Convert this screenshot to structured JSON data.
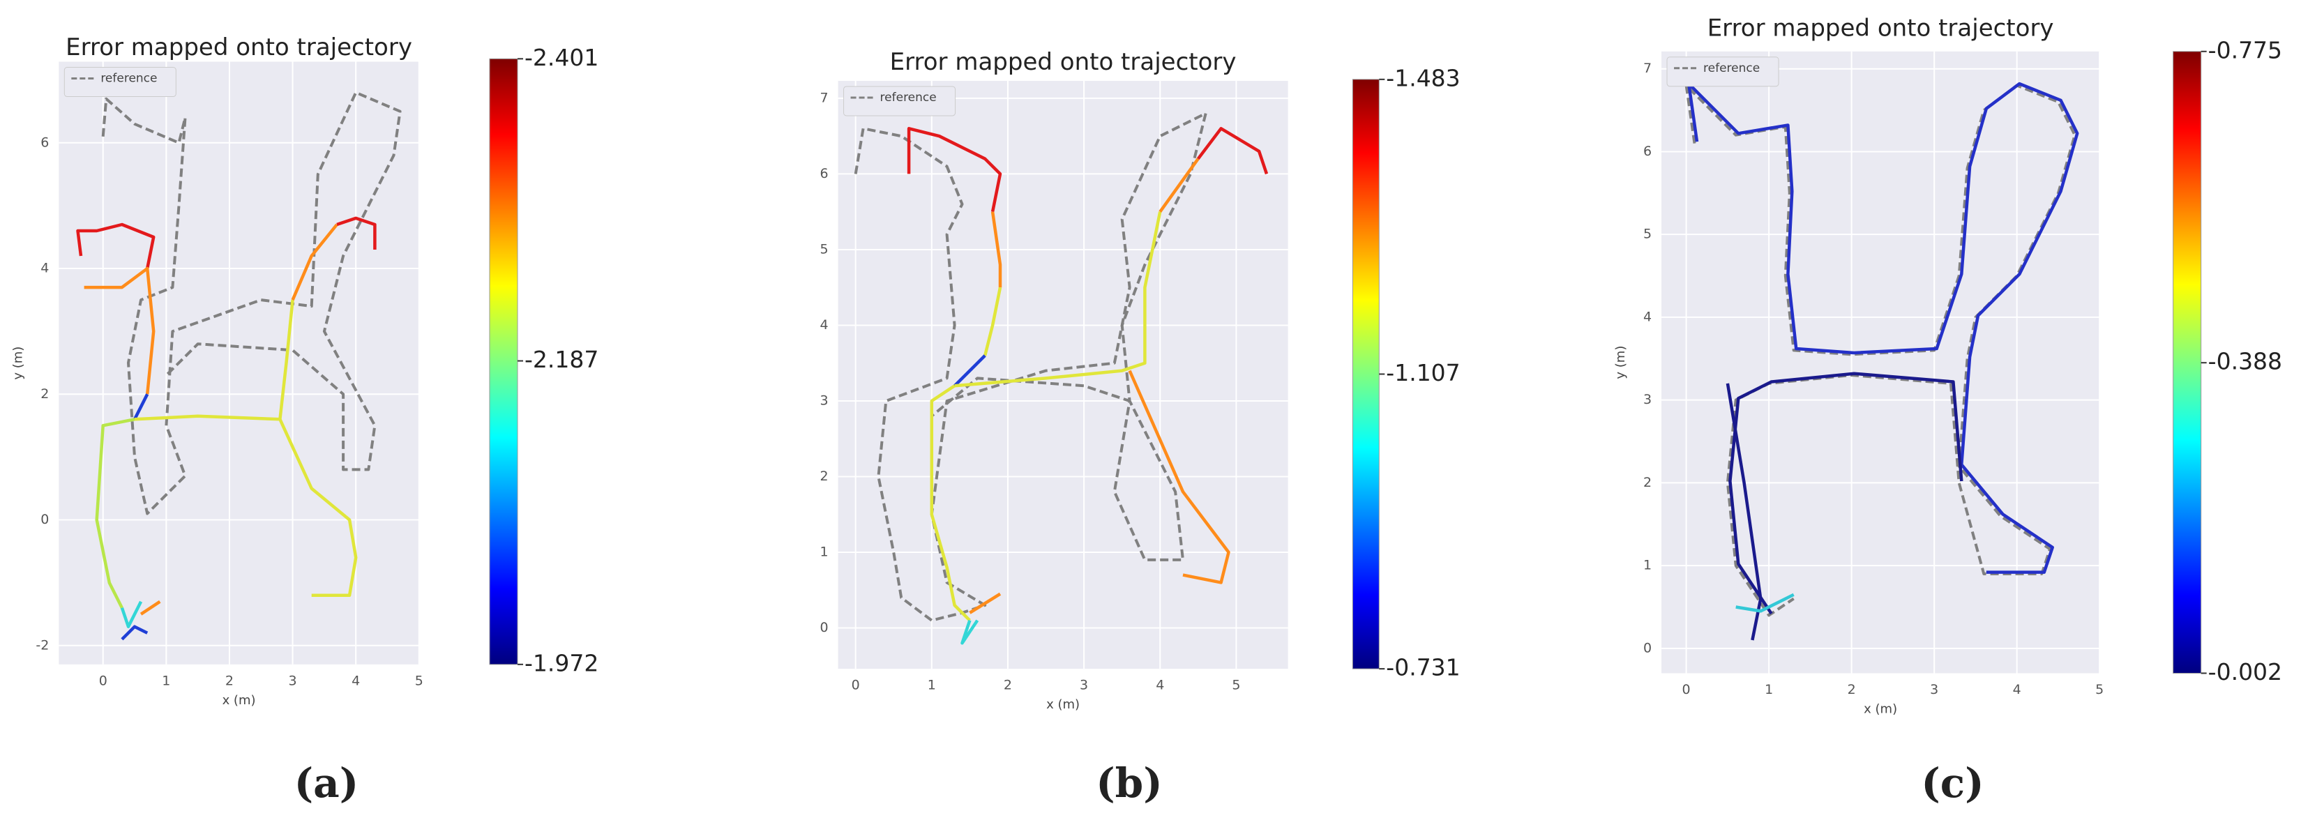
{
  "chart_data": [
    {
      "type": "line",
      "title": "Error mapped onto trajectory",
      "xlabel": "x (m)",
      "ylabel": "y (m)",
      "caption": "(a)",
      "xlim": [
        -0.7,
        5.0
      ],
      "ylim": [
        -2.3,
        7.29
      ],
      "xticks": [
        0,
        1,
        2,
        3,
        4,
        5
      ],
      "yticks": [
        -2,
        0,
        2,
        4,
        6
      ],
      "grid": true,
      "legend": "upper left",
      "colormap": "jet",
      "clim": [
        -1.972,
        -2.401
      ],
      "cbar_ticks": [
        -2.401,
        -2.187,
        -1.972
      ],
      "series": [
        {
          "name": "reference",
          "color": "#808080",
          "dashed": true,
          "x": [
            0,
            0.05,
            0.5,
            1.2,
            1.3,
            1.2,
            1.1,
            0.6,
            0.4,
            0.5,
            0.7,
            1.3,
            1.0,
            1.1,
            2.5,
            3.3,
            3.4,
            4.0,
            4.7,
            4.6,
            3.8,
            3.5,
            4.3,
            4.2,
            3.8,
            3.8,
            3.0,
            1.5,
            1.0
          ],
          "y": [
            6.1,
            6.7,
            6.3,
            6.0,
            6.4,
            5.0,
            3.7,
            3.5,
            2.5,
            1.0,
            0.1,
            0.7,
            1.5,
            3.0,
            3.5,
            3.4,
            5.5,
            6.8,
            6.5,
            5.8,
            4.2,
            3.0,
            1.5,
            0.8,
            0.8,
            2.0,
            2.7,
            2.8,
            2.3
          ]
        },
        {
          "color": "#e31a1c",
          "x": [
            -0.35,
            -0.4,
            -0.1,
            0.3,
            0.8,
            0.7
          ],
          "y": [
            4.2,
            4.6,
            4.6,
            4.7,
            4.5,
            4.0
          ]
        },
        {
          "color": "#ff8c1a",
          "x": [
            -0.3,
            0.3,
            0.7,
            0.8,
            0.7
          ],
          "y": [
            3.7,
            3.7,
            4.0,
            3.0,
            2.0
          ]
        },
        {
          "color": "#1f3fd6",
          "x": [
            0.7,
            0.6,
            0.5
          ],
          "y": [
            2.0,
            1.8,
            1.6
          ]
        },
        {
          "color": "#b8e64a",
          "x": [
            0.5,
            0,
            -0.1,
            0.1,
            0.3
          ],
          "y": [
            1.6,
            1.5,
            0,
            -1,
            -1.4
          ]
        },
        {
          "color": "#33d6d6",
          "x": [
            0.3,
            0.4,
            0.6
          ],
          "y": [
            -1.4,
            -1.7,
            -1.3
          ]
        },
        {
          "color": "#ff8c1a",
          "x": [
            0.6,
            0.9
          ],
          "y": [
            -1.5,
            -1.3
          ]
        },
        {
          "color": "#1f3fd6",
          "x": [
            0.3,
            0.5,
            0.7
          ],
          "y": [
            -1.9,
            -1.7,
            -1.8
          ]
        },
        {
          "color": "#e0e63a",
          "x": [
            0.5,
            1.5,
            2.8,
            2.9,
            3.0
          ],
          "y": [
            1.6,
            1.65,
            1.6,
            2.5,
            3.5
          ]
        },
        {
          "color": "#e0e63a",
          "x": [
            2.8,
            3.3,
            3.9,
            4.0,
            3.9,
            3.3
          ],
          "y": [
            1.6,
            0.5,
            0,
            -0.6,
            -1.2,
            -1.2
          ]
        },
        {
          "color": "#ff8c1a",
          "x": [
            3.0,
            3.3,
            3.7
          ],
          "y": [
            3.5,
            4.2,
            4.7
          ]
        },
        {
          "color": "#e31a1c",
          "x": [
            3.7,
            4.0,
            4.3,
            4.3
          ],
          "y": [
            4.7,
            4.8,
            4.7,
            4.3
          ]
        }
      ]
    },
    {
      "type": "line",
      "title": "Error mapped onto trajectory",
      "xlabel": "x (m)",
      "caption": "(b)",
      "xlim": [
        -0.23,
        5.68
      ],
      "ylim": [
        -0.54,
        7.23
      ],
      "xticks": [
        0,
        1,
        2,
        3,
        4,
        5
      ],
      "yticks": [
        0,
        1,
        2,
        3,
        4,
        5,
        6,
        7
      ],
      "grid": true,
      "legend": "upper left",
      "colormap": "jet",
      "clim": [
        -0.731,
        -1.483
      ],
      "cbar_ticks": [
        -1.483,
        -1.107,
        -0.731
      ],
      "series": [
        {
          "name": "reference",
          "color": "#808080",
          "dashed": true,
          "x": [
            0,
            0.1,
            0.6,
            1.2,
            1.4,
            1.2,
            1.3,
            1.2,
            0.4,
            0.3,
            0.5,
            0.6,
            1.0,
            1.4,
            1.7,
            1.2,
            1.0,
            1.2,
            2.5,
            3.4,
            3.6,
            3.5,
            4.0,
            4.6,
            4.4,
            3.8,
            3.5,
            3.6,
            4.2,
            4.3,
            3.8,
            3.4,
            3.6,
            3.0,
            1.6,
            1.0
          ],
          "y": [
            6.0,
            6.6,
            6.5,
            6.1,
            5.6,
            5.2,
            4.0,
            3.3,
            3.0,
            2.0,
            1.0,
            0.4,
            0.1,
            0.2,
            0.3,
            0.6,
            1.5,
            3.0,
            3.4,
            3.5,
            4.5,
            5.4,
            6.5,
            6.8,
            6.0,
            4.8,
            4.0,
            3.0,
            1.8,
            0.9,
            0.9,
            1.8,
            3.0,
            3.2,
            3.3,
            2.8
          ]
        },
        {
          "color": "#e31a1c",
          "x": [
            0.7,
            0.7,
            1.1,
            1.7,
            1.9,
            1.8
          ],
          "y": [
            6.0,
            6.6,
            6.5,
            6.2,
            6.0,
            5.5
          ]
        },
        {
          "color": "#ff8c1a",
          "x": [
            1.8,
            1.9,
            1.9
          ],
          "y": [
            5.5,
            4.8,
            4.5
          ]
        },
        {
          "color": "#e0e63a",
          "x": [
            1.9,
            1.8,
            1.7
          ],
          "y": [
            4.5,
            4.0,
            3.6
          ]
        },
        {
          "color": "#1f3fd6",
          "x": [
            1.7,
            1.5,
            1.3
          ],
          "y": [
            3.6,
            3.4,
            3.2
          ]
        },
        {
          "color": "#e0e63a",
          "x": [
            1.3,
            1.0,
            1.0,
            1.2,
            1.3,
            1.5
          ],
          "y": [
            3.2,
            3.0,
            1.5,
            0.8,
            0.3,
            0.1
          ]
        },
        {
          "color": "#33d6d6",
          "x": [
            1.5,
            1.4,
            1.6
          ],
          "y": [
            0.1,
            -0.2,
            0.1
          ]
        },
        {
          "color": "#ff8c1a",
          "x": [
            1.5,
            1.9
          ],
          "y": [
            0.2,
            0.45
          ]
        },
        {
          "color": "#e0e63a",
          "x": [
            1.3,
            2.5,
            3.5,
            3.8,
            3.8,
            4.0
          ],
          "y": [
            3.2,
            3.3,
            3.4,
            3.5,
            4.5,
            5.5
          ]
        },
        {
          "color": "#ff8c1a",
          "x": [
            4.0,
            4.5
          ],
          "y": [
            5.5,
            6.2
          ]
        },
        {
          "color": "#e31a1c",
          "x": [
            4.5,
            4.8,
            5.3,
            5.4
          ],
          "y": [
            6.2,
            6.6,
            6.3,
            6.0
          ]
        },
        {
          "color": "#ff8c1a",
          "x": [
            3.6,
            4.3,
            4.9,
            4.8,
            4.3
          ],
          "y": [
            3.4,
            1.8,
            1.0,
            0.6,
            0.7
          ]
        }
      ]
    },
    {
      "type": "line",
      "title": "Error mapped onto trajectory",
      "xlabel": "x (m)",
      "ylabel": "y (m)",
      "caption": "(c)",
      "xlim": [
        -0.3,
        5.0
      ],
      "ylim": [
        -0.3,
        7.21
      ],
      "xticks": [
        0,
        1,
        2,
        3,
        4,
        5
      ],
      "yticks": [
        0,
        1,
        2,
        3,
        4,
        5,
        6,
        7
      ],
      "grid": true,
      "legend": "upper left",
      "colormap": "jet",
      "clim": [
        -0.002,
        -0.775
      ],
      "cbar_ticks": [
        -0.775,
        -0.388,
        -0.002
      ],
      "series": [
        {
          "name": "reference",
          "color": "#808080",
          "dashed": true,
          "x": [
            0.1,
            0.0,
            0.6,
            1.2,
            1.25,
            1.2,
            1.3,
            2.0,
            3.0,
            3.3,
            3.4,
            3.6,
            4.0,
            4.5,
            4.7,
            4.5,
            4.0,
            3.5,
            3.4,
            3.3,
            3.8,
            4.4,
            4.3,
            3.6,
            3.3,
            3.2,
            2.0,
            1.0,
            0.6,
            0.5,
            0.6,
            1.0,
            1.3
          ],
          "y": [
            6.1,
            6.8,
            6.2,
            6.3,
            5.5,
            4.5,
            3.6,
            3.55,
            3.6,
            4.5,
            5.8,
            6.5,
            6.8,
            6.6,
            6.2,
            5.5,
            4.5,
            4.0,
            3.5,
            2.2,
            1.6,
            1.2,
            0.9,
            0.9,
            2.0,
            3.2,
            3.3,
            3.2,
            3.0,
            2.0,
            1.0,
            0.4,
            0.6
          ]
        },
        {
          "color": "#2430c8",
          "x": [
            0.13,
            0.03,
            0.63,
            1.23,
            1.28,
            1.23,
            1.33,
            2.03,
            3.03,
            3.33,
            3.43,
            3.63,
            4.03,
            4.53,
            4.73,
            4.53,
            4.03,
            3.53,
            3.43,
            3.33,
            3.83,
            4.43,
            4.33,
            3.63
          ],
          "y": [
            6.12,
            6.82,
            6.22,
            6.32,
            5.52,
            4.52,
            3.62,
            3.57,
            3.62,
            4.52,
            5.82,
            6.52,
            6.82,
            6.62,
            6.22,
            5.52,
            4.52,
            4.02,
            3.52,
            2.22,
            1.62,
            1.22,
            0.92,
            0.92
          ]
        },
        {
          "color": "#1a1a8c",
          "x": [
            3.33,
            3.23,
            2.03,
            1.03,
            0.63,
            0.53,
            0.63,
            1.03
          ],
          "y": [
            2.02,
            3.22,
            3.32,
            3.22,
            3.02,
            2.02,
            1.02,
            0.42
          ]
        },
        {
          "color": "#1a1a8c",
          "x": [
            0.5,
            0.7,
            0.9,
            0.8
          ],
          "y": [
            3.2,
            2.0,
            0.6,
            0.1
          ]
        },
        {
          "color": "#33c8d6",
          "x": [
            0.6,
            0.9,
            1.3
          ],
          "y": [
            0.5,
            0.45,
            0.65
          ]
        }
      ]
    }
  ]
}
